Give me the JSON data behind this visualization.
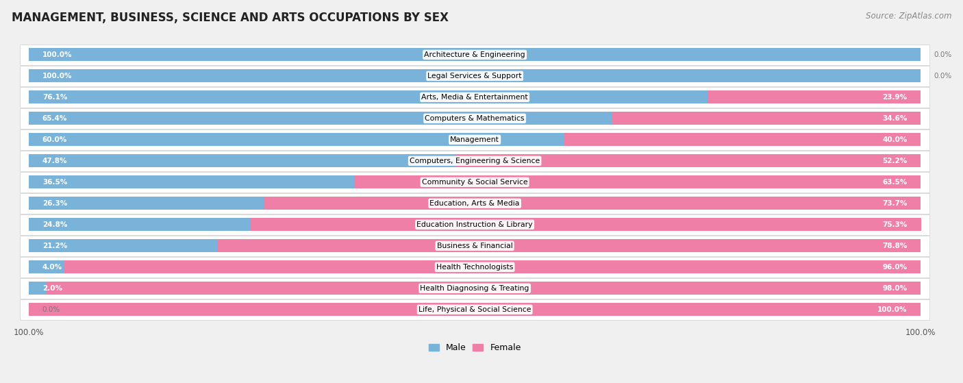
{
  "title": "MANAGEMENT, BUSINESS, SCIENCE AND ARTS OCCUPATIONS BY SEX",
  "source": "Source: ZipAtlas.com",
  "categories": [
    "Architecture & Engineering",
    "Legal Services & Support",
    "Arts, Media & Entertainment",
    "Computers & Mathematics",
    "Management",
    "Computers, Engineering & Science",
    "Community & Social Service",
    "Education, Arts & Media",
    "Education Instruction & Library",
    "Business & Financial",
    "Health Technologists",
    "Health Diagnosing & Treating",
    "Life, Physical & Social Science"
  ],
  "male": [
    100.0,
    100.0,
    76.1,
    65.4,
    60.0,
    47.8,
    36.5,
    26.3,
    24.8,
    21.2,
    4.0,
    2.0,
    0.0
  ],
  "female": [
    0.0,
    0.0,
    23.9,
    34.6,
    40.0,
    52.2,
    63.5,
    73.7,
    75.3,
    78.8,
    96.0,
    98.0,
    100.0
  ],
  "male_color": "#7ab3d9",
  "female_color": "#f07fa8",
  "bg_color": "#f0f0f0",
  "bar_bg_color": "#ffffff",
  "row_bg_color": "#f7f7f7",
  "title_fontsize": 12,
  "source_fontsize": 8.5,
  "label_fontsize": 7.8,
  "bar_label_fontsize": 7.5,
  "legend_fontsize": 9
}
